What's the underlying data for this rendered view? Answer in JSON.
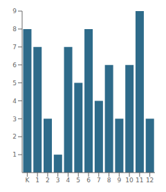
{
  "chart_data": {
    "type": "bar",
    "categories": [
      "K",
      "1",
      "2",
      "3",
      "4",
      "5",
      "6",
      "7",
      "8",
      "9",
      "10",
      "11",
      "12"
    ],
    "values": [
      8,
      7,
      3,
      1,
      7,
      5,
      8,
      4,
      6,
      3,
      6,
      9,
      3
    ],
    "color": "#2e6b8a",
    "ylim": [
      0,
      9
    ],
    "yticks": [
      1,
      2,
      3,
      4,
      5,
      6,
      7,
      8,
      9
    ],
    "grid": false
  }
}
